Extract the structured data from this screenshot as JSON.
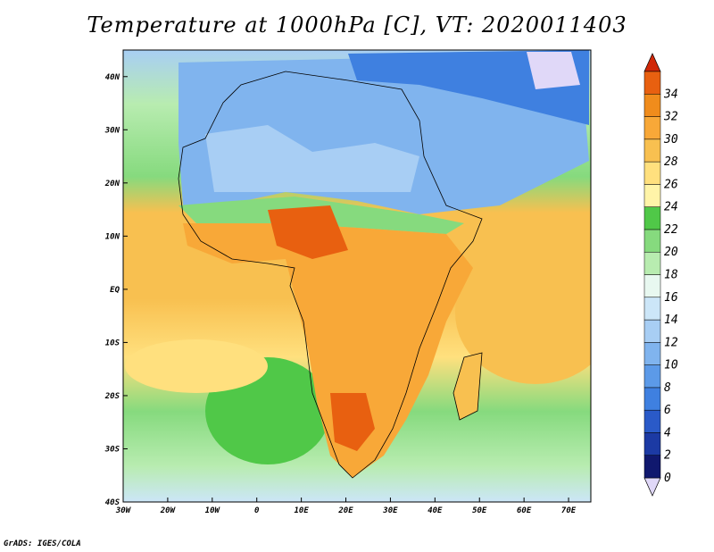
{
  "title": "Temperature at 1000hPa [C], VT: 2020011403",
  "credit": "GrADS: IGES/COLA",
  "map": {
    "lon_range": [
      -30,
      75
    ],
    "lat_range": [
      -40,
      45
    ],
    "lon_ticks": [
      "30W",
      "20W",
      "10W",
      "0",
      "10E",
      "20E",
      "30E",
      "40E",
      "50E",
      "60E",
      "70E"
    ],
    "lat_ticks": [
      "40N",
      "30N",
      "20N",
      "10N",
      "EQ",
      "10S",
      "20S",
      "30S",
      "40S"
    ]
  },
  "colorbar": {
    "labels": [
      "0",
      "2",
      "4",
      "6",
      "8",
      "10",
      "12",
      "14",
      "16",
      "18",
      "20",
      "22",
      "24",
      "26",
      "28",
      "30",
      "32",
      "34"
    ],
    "colors": [
      "#e0d8f8",
      "#10186e",
      "#1c3aa4",
      "#2a5ac8",
      "#3f80e0",
      "#5c9ae8",
      "#80b4ee",
      "#a8cef4",
      "#cce6f8",
      "#e8f8f0",
      "#b8ecb0",
      "#86da7e",
      "#50c848",
      "#fff4a8",
      "#ffe07e",
      "#f8c050",
      "#f8a838",
      "#f08c1c",
      "#e86010",
      "#d02808"
    ]
  }
}
